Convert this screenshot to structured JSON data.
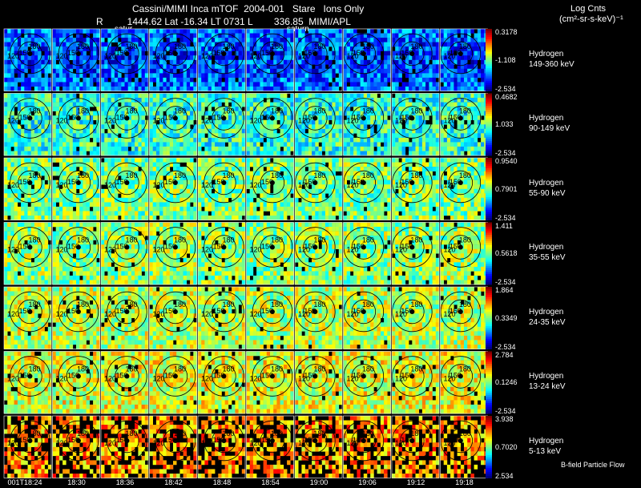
{
  "header": {
    "title_line": "Cassini/MIMI Inca mTOF  2004-001   Stare   Ions Only",
    "position_line": "R         1444.62 Lat -16.34 LT 0731 L        336.85  MIMI/APL",
    "units_line1": "Log Cnts",
    "units_line2": "(cm²-sr-s-keV)⁻¹",
    "saturn_labels": [
      "satur",
      "saturn"
    ]
  },
  "footer": {
    "note": "B-field Particle Flow"
  },
  "chart_data": {
    "type": "heatmap",
    "title": "Cassini/MIMI Inca mTOF  2004-001   Stare   Ions Only",
    "time_labels": [
      "001T18:24",
      "18:30",
      "18:36",
      "18:42",
      "18:48",
      "18:54",
      "19:00",
      "19:06",
      "19:12",
      "19:18"
    ],
    "contour_labels": [
      "120",
      "150",
      "180"
    ],
    "channels": [
      {
        "species": "Hydrogen",
        "energy": "149-360 keV",
        "max": "0.3178",
        "mid": "-1.108",
        "min": "-2.534"
      },
      {
        "species": "Hydrogen",
        "energy": "90-149 keV",
        "max": "0.4682",
        "mid": "1.033",
        "min": "-2.534"
      },
      {
        "species": "Hydrogen",
        "energy": "55-90 keV",
        "max": "0.9540",
        "mid": "0.7901",
        "min": "-2.534"
      },
      {
        "species": "Hydrogen",
        "energy": "35-55 keV",
        "max": "1.411",
        "mid": "0.5618",
        "min": "-2.534"
      },
      {
        "species": "Hydrogen",
        "energy": "24-35 keV",
        "max": "1.864",
        "mid": "0.3349",
        "min": "-2.534"
      },
      {
        "species": "Hydrogen",
        "energy": "13-24 keV",
        "max": "2.784",
        "mid": "0.1246",
        "min": "-2.534"
      },
      {
        "species": "Hydrogen",
        "energy": "5-13 keV",
        "max": "3.938",
        "mid": "0.7020",
        "min": "2.534"
      }
    ]
  }
}
